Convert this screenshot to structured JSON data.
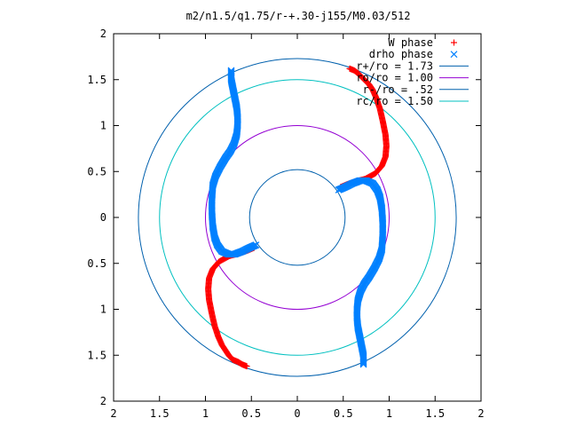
{
  "chart_data": {
    "type": "scatter",
    "title": "m2/n1.5/q1.75/r-+.30-j155/M0.03/512",
    "xlabel": "",
    "ylabel": "",
    "xlim": [
      -2,
      2
    ],
    "ylim": [
      -2,
      2
    ],
    "x_ticks": [
      "2",
      "1.5",
      "1",
      "0.5",
      "0",
      "0.5",
      "1",
      "1.5",
      "2"
    ],
    "y_ticks": [
      "2",
      "1.5",
      "1",
      "0.5",
      "0",
      "0.5",
      "1",
      "1.5",
      "2"
    ],
    "grid": false,
    "legend_position": "top-right",
    "series": [
      {
        "name": "W phase",
        "marker": "+",
        "color": "#ff0000",
        "curves": [
          [
            [
              0.57,
              1.62
            ],
            [
              0.62,
              1.6
            ],
            [
              0.66,
              1.57
            ],
            [
              0.7,
              1.53
            ],
            [
              0.74,
              1.49
            ],
            [
              0.78,
              1.45
            ],
            [
              0.82,
              1.39
            ],
            [
              0.86,
              1.3
            ],
            [
              0.9,
              1.18
            ],
            [
              0.93,
              1.05
            ],
            [
              0.96,
              0.9
            ],
            [
              0.97,
              0.78
            ],
            [
              0.96,
              0.66
            ],
            [
              0.92,
              0.56
            ],
            [
              0.85,
              0.48
            ],
            [
              0.74,
              0.42
            ],
            [
              0.63,
              0.39
            ],
            [
              0.54,
              0.36
            ],
            [
              0.47,
              0.33
            ]
          ],
          [
            [
              -0.47,
              -0.33
            ],
            [
              -0.54,
              -0.36
            ],
            [
              -0.63,
              -0.39
            ],
            [
              -0.74,
              -0.42
            ],
            [
              -0.85,
              -0.48
            ],
            [
              -0.92,
              -0.56
            ],
            [
              -0.96,
              -0.66
            ],
            [
              -0.97,
              -0.78
            ],
            [
              -0.96,
              -0.9
            ],
            [
              -0.93,
              -1.05
            ],
            [
              -0.9,
              -1.18
            ],
            [
              -0.86,
              -1.3
            ],
            [
              -0.82,
              -1.39
            ],
            [
              -0.78,
              -1.45
            ],
            [
              -0.74,
              -1.51
            ],
            [
              -0.7,
              -1.55
            ],
            [
              -0.65,
              -1.57
            ],
            [
              -0.6,
              -1.6
            ],
            [
              -0.55,
              -1.62
            ]
          ]
        ]
      },
      {
        "name": "drho phase",
        "marker": "x",
        "color": "#0080ff",
        "curves": [
          [
            [
              -0.72,
              1.6
            ],
            [
              -0.72,
              1.5
            ],
            [
              -0.7,
              1.4
            ],
            [
              -0.68,
              1.3
            ],
            [
              -0.66,
              1.2
            ],
            [
              -0.65,
              1.1
            ],
            [
              -0.65,
              1.0
            ],
            [
              -0.66,
              0.9
            ],
            [
              -0.69,
              0.8
            ],
            [
              -0.73,
              0.72
            ],
            [
              -0.78,
              0.65
            ],
            [
              -0.84,
              0.55
            ],
            [
              -0.89,
              0.45
            ],
            [
              -0.92,
              0.35
            ],
            [
              -0.93,
              0.2
            ],
            [
              -0.93,
              0.05
            ],
            [
              -0.92,
              -0.1
            ],
            [
              -0.9,
              -0.22
            ],
            [
              -0.87,
              -0.3
            ],
            [
              -0.82,
              -0.37
            ],
            [
              -0.75,
              -0.4
            ],
            [
              -0.68,
              -0.4
            ],
            [
              -0.6,
              -0.37
            ],
            [
              -0.52,
              -0.33
            ],
            [
              -0.45,
              -0.3
            ]
          ],
          [
            [
              0.72,
              -1.6
            ],
            [
              0.72,
              -1.5
            ],
            [
              0.7,
              -1.4
            ],
            [
              0.68,
              -1.3
            ],
            [
              0.66,
              -1.2
            ],
            [
              0.65,
              -1.1
            ],
            [
              0.65,
              -1.0
            ],
            [
              0.66,
              -0.9
            ],
            [
              0.69,
              -0.8
            ],
            [
              0.73,
              -0.72
            ],
            [
              0.78,
              -0.65
            ],
            [
              0.84,
              -0.55
            ],
            [
              0.89,
              -0.45
            ],
            [
              0.92,
              -0.35
            ],
            [
              0.93,
              -0.2
            ],
            [
              0.93,
              -0.05
            ],
            [
              0.92,
              0.1
            ],
            [
              0.9,
              0.22
            ],
            [
              0.87,
              0.3
            ],
            [
              0.82,
              0.37
            ],
            [
              0.75,
              0.4
            ],
            [
              0.68,
              0.4
            ],
            [
              0.6,
              0.37
            ],
            [
              0.52,
              0.33
            ],
            [
              0.45,
              0.3
            ]
          ]
        ]
      },
      {
        "name": "r+/ro = 1.73",
        "type": "circle",
        "radius": 1.73,
        "color": "#0060ad"
      },
      {
        "name": "ro/ro = 1.00",
        "type": "circle",
        "radius": 1.0,
        "color": "#9400d3"
      },
      {
        "name": "r-/ro = .52",
        "type": "circle",
        "radius": 0.52,
        "color": "#0060ad"
      },
      {
        "name": "rc/ro = 1.50",
        "type": "circle",
        "radius": 1.5,
        "color": "#00c0c0"
      }
    ]
  }
}
